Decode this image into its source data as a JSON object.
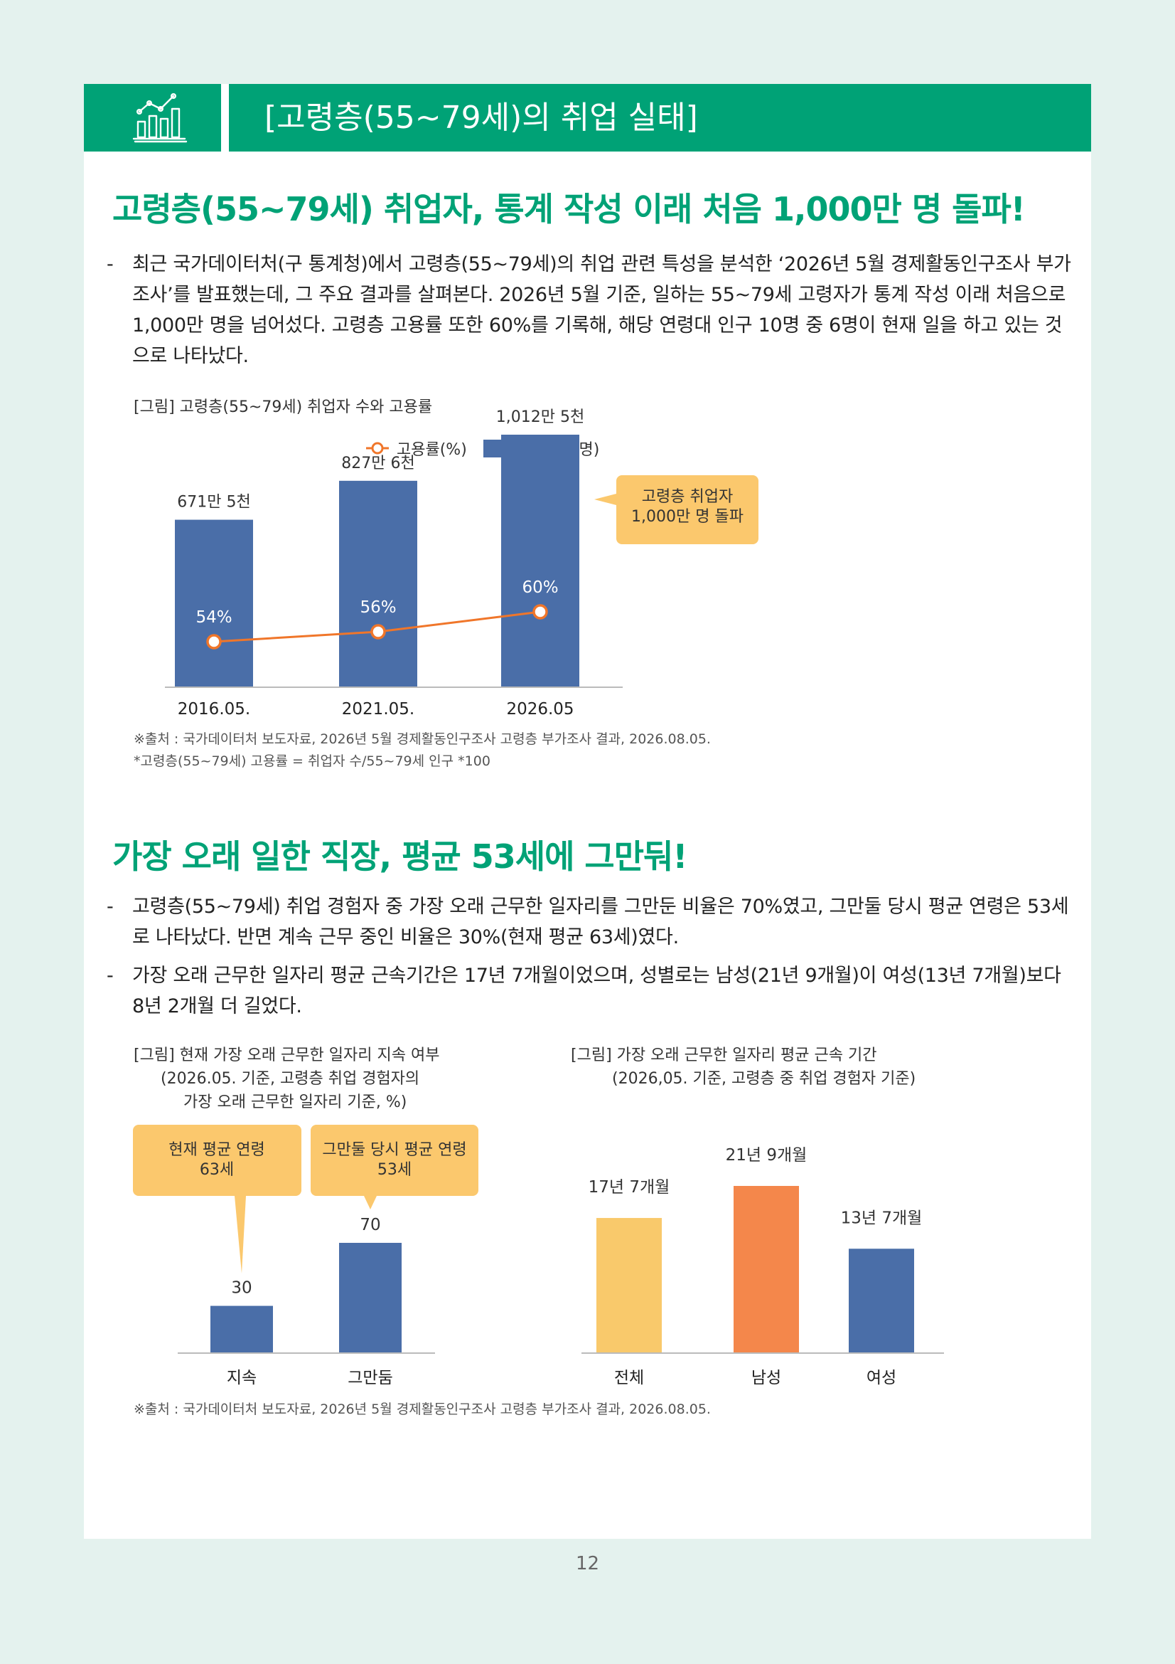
{
  "banner": {
    "title": "[고령층(55~79세)의 취업 실태]",
    "icon": "bar-line-chart-icon"
  },
  "section1": {
    "heading": "고령층(55~79세) 취업자, 통계 작성 이래 처음 1,000만 명 돌파!",
    "bullet": "최근 국가데이터처(구 통계청)에서 고령층(55~79세)의 취업 관련 특성을 분석한 ‘2026년 5월 경제활동인구조사 부가조사’를 발표했는데, 그 주요 결과를 살펴본다. 2026년 5월 기준, 일하는 55~79세 고령자가 통계 작성 이래 처음으로 1,000만 명을 넘어섰다. 고령층 고용률 또한 60%를 기록해, 해당 연령대 인구 10명 중 6명이 현재 일을 하고 있는 것으로 나타났다.",
    "figure_caption": "[그림] 고령층(55~79세) 취업자 수와 고용률",
    "callout": "고령층 취업자\n1,000만 명 돌파",
    "source": "※출처 : 국가데이터처 보도자료, 2026년 5월 경제활동인구조사 고령층 부가조사 결과, 2026.08.05.",
    "note": "*고령층(55~79세) 고용률 = 취업자 수/55~79세 인구 *100"
  },
  "section2": {
    "heading": "가장 오래 일한 직장, 평균 53세에 그만둬!",
    "bullets": [
      "고령층(55~79세) 취업 경험자 중 가장 오래 근무한 일자리를 그만둔 비율은 70%였고, 그만둘 당시 평균 연령은 53세로 나타났다. 반면 계속 근무 중인 비율은 30%(현재 평균 63세)였다.",
      "가장 오래 근무한 일자리 평균 근속기간은 17년 7개월이었으며, 성별로는 남성(21년 9개월)이 여성(13년 7개월)보다 8년 2개월 더 길었다."
    ],
    "figure2_caption": "[그림] 현재 가장 오래 근무한 일자리 지속 여부",
    "figure2_sub1": "(2026.05. 기준, 고령층 취업 경험자의",
    "figure2_sub2": "가장 오래 근무한 일자리 기준, %)",
    "callout_current": "현재 평균 연령\n63세",
    "callout_quit": "그만둘 당시 평균 연령\n53세",
    "figure3_caption": "[그림] 가장 오래 근무한 일자리 평균 근속 기간",
    "figure3_sub": "(2026,05. 기준, 고령층 중 취업 경험자 기준)",
    "source": "※출처 : 국가데이터처 보도자료, 2026년 5월 경제활동인구조사 고령층 부가조사 결과, 2026.08.05."
  },
  "page_number": "12",
  "colors": {
    "green": "#00a276",
    "blue": "#4a6ea8",
    "orange": "#f0762a",
    "yellow": "#f9c96b",
    "bar_orange": "#f4874b",
    "callout": "#fbc86d"
  },
  "chart_data": [
    {
      "type": "bar",
      "categories": [
        "2016.05.",
        "2021.05.",
        "2026.05"
      ],
      "series": [
        {
          "name": "취업자 수(명)",
          "values": [
            6715000,
            8276000,
            10125000
          ],
          "labels": [
            "671만 5천",
            "827만 6천",
            "1,012만 5천"
          ]
        },
        {
          "name": "고용률(%)",
          "type": "line",
          "values": [
            54,
            56,
            60
          ],
          "labels": [
            "54%",
            "56%",
            "60%"
          ]
        }
      ],
      "legend": "top",
      "ylim": [
        0,
        12000000
      ],
      "y2lim": [
        30,
        70
      ]
    },
    {
      "type": "bar",
      "categories": [
        "지속",
        "그만둠"
      ],
      "values": [
        30,
        70
      ],
      "labels": [
        "30",
        "70"
      ],
      "ylim": [
        0,
        100
      ]
    },
    {
      "type": "bar",
      "categories": [
        "전체",
        "남성",
        "여성"
      ],
      "values": [
        17.58,
        21.75,
        13.58
      ],
      "labels": [
        "17년 7개월",
        "21년 9개월",
        "13년 7개월"
      ],
      "ylim": [
        0,
        25
      ]
    }
  ]
}
